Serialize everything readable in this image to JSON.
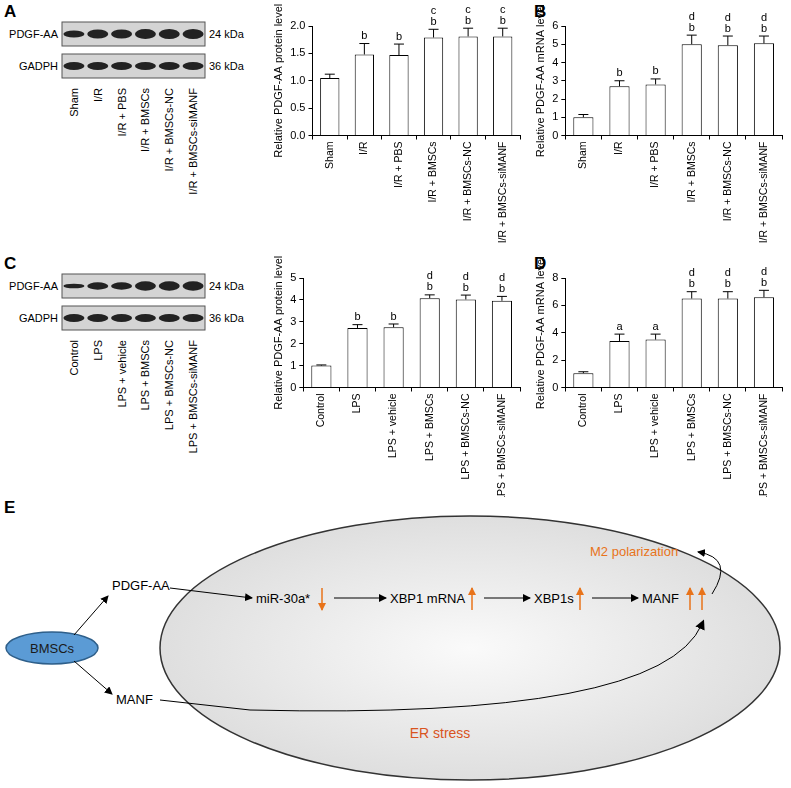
{
  "chart_data": [
    {
      "type": "bar",
      "panel": "A",
      "categories": [
        "Sham",
        "I/R",
        "I/R + PBS",
        "I/R + BMSCs",
        "I/R + BMSCs-NC",
        "I/R + BMSCs-siMANF"
      ],
      "values": [
        1.05,
        1.48,
        1.47,
        1.79,
        1.81,
        1.81
      ],
      "errors": [
        0.07,
        0.2,
        0.2,
        0.15,
        0.15,
        0.15
      ],
      "annotations": [
        [],
        [
          "b"
        ],
        [
          "b"
        ],
        [
          "c",
          "b"
        ],
        [
          "c",
          "b"
        ],
        [
          "c",
          "b"
        ]
      ],
      "y_label": "Relative PDGF-AA protein level",
      "color": "#ffffff",
      "ylim": [
        0,
        2
      ],
      "yticks": [
        {
          "value": 0,
          "label": "0.0"
        },
        {
          "value": 0.5,
          "label": "0.5"
        },
        {
          "value": 1,
          "label": "1.0"
        },
        {
          "value": 1.5,
          "label": "1.5"
        },
        {
          "value": 2,
          "label": "2.0"
        }
      ],
      "grid": false
    },
    {
      "type": "bar",
      "panel": "B",
      "categories": [
        "Sham",
        "I/R",
        "I/R + PBS",
        "I/R + BMSCs",
        "I/R + BMSCs-NC",
        "I/R + BMSCs-siMANF"
      ],
      "values": [
        1.0,
        2.7,
        2.8,
        5.0,
        4.95,
        5.05
      ],
      "errors": [
        0.15,
        0.3,
        0.3,
        0.5,
        0.5,
        0.4
      ],
      "annotations": [
        [],
        [
          "b"
        ],
        [
          "b"
        ],
        [
          "d",
          "b"
        ],
        [
          "d",
          "b"
        ],
        [
          "d",
          "b"
        ]
      ],
      "y_label": "Relative PDGF-AA mRNA level",
      "color": "#ffffff",
      "ylim": [
        0,
        6
      ],
      "yticks": [
        0,
        1,
        2,
        3,
        4,
        5,
        6
      ],
      "grid": false
    },
    {
      "type": "bar",
      "panel": "C",
      "categories": [
        "Control",
        "LPS",
        "LPS + vehicle",
        "LPS + BMSCs",
        "LPS + BMSCs-NC",
        "LPS + BMSCs-siMANF"
      ],
      "values": [
        1.0,
        2.72,
        2.75,
        4.08,
        4.02,
        3.96
      ],
      "errors": [
        0.03,
        0.15,
        0.15,
        0.15,
        0.2,
        0.2
      ],
      "annotations": [
        [],
        [
          "b"
        ],
        [
          "b"
        ],
        [
          "d",
          "b"
        ],
        [
          "d",
          "b"
        ],
        [
          "d",
          "b"
        ]
      ],
      "y_label": "Relative PDGF-AA protein level",
      "color": "#ffffff",
      "ylim": [
        0,
        5
      ],
      "yticks": [
        0,
        1,
        2,
        3,
        4,
        5
      ],
      "grid": false
    },
    {
      "type": "bar",
      "panel": "D",
      "categories": [
        "Control",
        "LPS",
        "LPS + vehicle",
        "LPS + BMSCs",
        "LPS + BMSCs-NC",
        "LPS + BMSCs-siMANF"
      ],
      "values": [
        1.05,
        3.4,
        3.5,
        6.5,
        6.5,
        6.6
      ],
      "errors": [
        0.1,
        0.5,
        0.4,
        0.5,
        0.5,
        0.5
      ],
      "annotations": [
        [],
        [
          "a"
        ],
        [
          "a"
        ],
        [
          "d",
          "b"
        ],
        [
          "d",
          "b"
        ],
        [
          "d",
          "b"
        ]
      ],
      "y_label": "Relative PDGF-AA mRNA level",
      "color": "#ffffff",
      "ylim": [
        0,
        8
      ],
      "yticks": [
        0,
        2,
        4,
        6,
        8
      ],
      "grid": false
    }
  ],
  "blots": [
    {
      "rows": [
        {
          "protein": "PDGF-AA",
          "size": "24 kDa"
        },
        {
          "protein": "GADPH",
          "size": "36 kDa"
        }
      ],
      "lanes": [
        "Sham",
        "I/R",
        "I/R + PBS",
        "I/R + BMSCs",
        "I/R + BMSCs-NC",
        "I/R + BMSCs-siMANF"
      ]
    },
    {
      "rows": [
        {
          "protein": "PDGF-AA",
          "size": "24 kDa"
        },
        {
          "protein": "GADPH",
          "size": "36 kDa"
        }
      ],
      "lanes": [
        "Control",
        "LPS",
        "LPS + vehicle",
        "LPS + BMSCs",
        "LPS + BMSCs-NC",
        "LPS + BMSCs-siMANF"
      ]
    }
  ],
  "diagram": {
    "panel": "E",
    "source": "BMSCs",
    "secreted": [
      "PDGF-AA",
      "MANF"
    ],
    "pathway": [
      "miR-30a*",
      "XBP1 mRNA",
      "XBP1s",
      "MANF"
    ],
    "outcome": "M2 polarization",
    "context": "ER stress"
  }
}
